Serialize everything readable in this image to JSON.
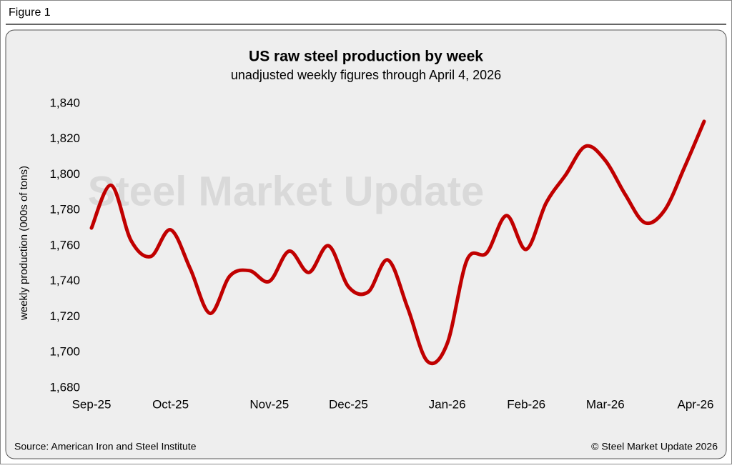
{
  "figure_label": "Figure 1",
  "chart_data": {
    "type": "line",
    "title": "US raw steel production by week",
    "subtitle": "unadjusted weekly figures through April 4, 2026",
    "y_label": "weekly production (000s of tons)",
    "watermark": "Steel Market Update",
    "categories": [
      "Sep-25",
      null,
      null,
      null,
      "Oct-25",
      null,
      null,
      null,
      null,
      "Nov-25",
      null,
      null,
      null,
      "Dec-25",
      null,
      null,
      null,
      null,
      "Jan-26",
      null,
      null,
      null,
      "Feb-26",
      null,
      null,
      null,
      "Mar-26",
      null,
      null,
      null,
      null,
      "Apr-26"
    ],
    "series": [
      {
        "name": "US raw steel production",
        "color": "#c00000",
        "values": [
          1770,
          1794,
          1763,
          1754,
          1769,
          1747,
          1722,
          1743,
          1746,
          1740,
          1757,
          1745,
          1760,
          1737,
          1734,
          1752,
          1725,
          1695,
          1705,
          1752,
          1756,
          1777,
          1758,
          1784,
          1800,
          1816,
          1808,
          1789,
          1773,
          1780,
          1804,
          1830
        ]
      }
    ],
    "ylim": [
      1680,
      1840
    ],
    "yticks": [
      {
        "value": 1680,
        "label": "1,680"
      },
      {
        "value": 1700,
        "label": "1,700"
      },
      {
        "value": 1720,
        "label": "1,720"
      },
      {
        "value": 1740,
        "label": "1,740"
      },
      {
        "value": 1760,
        "label": "1,760"
      },
      {
        "value": 1780,
        "label": "1,780"
      },
      {
        "value": 1800,
        "label": "1,800"
      },
      {
        "value": 1820,
        "label": "1,820"
      },
      {
        "value": 1840,
        "label": "1,840"
      }
    ],
    "grid": false,
    "source": "Source: American Iron and Steel Institute",
    "copyright": "© Steel Market Update 2026"
  }
}
